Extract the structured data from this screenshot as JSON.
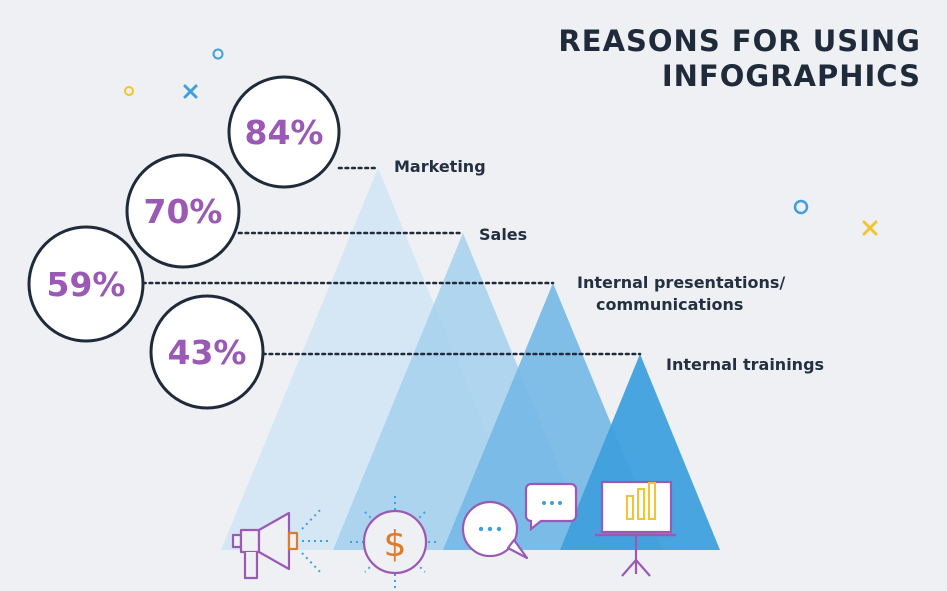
{
  "title_lines": [
    "REASONS FOR USING",
    "INFOGRAPHICS"
  ],
  "colors": {
    "background": "#eef0f3",
    "circle_text": "#9b59b6",
    "outline": "#1f2a3a",
    "mountains": [
      "#d3e6f4",
      "#a8d1ee",
      "#74b8e5",
      "#3fa0dd"
    ],
    "accent_yellow": "#f2c530",
    "accent_blue": "#3fa0dd",
    "accent_orange": "#e07b2b"
  },
  "chart_data": {
    "type": "bar",
    "categories": [
      "Marketing",
      "Sales",
      "Internal presentations/ communications",
      "Internal trainings"
    ],
    "category_label_lines": [
      [
        "Marketing"
      ],
      [
        "Sales"
      ],
      [
        "Internal presentations/",
        "communications"
      ],
      [
        "Internal trainings"
      ]
    ],
    "values": [
      84,
      70,
      59,
      43
    ],
    "value_labels": [
      "84%",
      "70%",
      "59%",
      "43%"
    ],
    "unit": "%"
  },
  "icons": [
    "megaphone-icon",
    "dollar-coin-icon",
    "chat-bubbles-icon",
    "presentation-board-icon"
  ]
}
